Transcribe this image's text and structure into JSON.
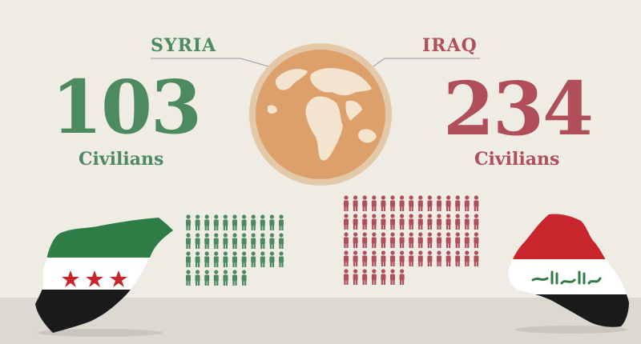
{
  "syria": {
    "name": "SYRIA",
    "count": "103",
    "unit": "Civilians",
    "color": "#4d8a5f",
    "icon_rows": [
      11,
      11,
      11,
      7
    ]
  },
  "iraq": {
    "name": "IRAQ",
    "count": "234",
    "unit": "Civilians",
    "color": "#b04e5a",
    "icon_rows": [
      15,
      15,
      15,
      15,
      7
    ]
  },
  "globe": {
    "icon": "globe-icon",
    "color": "#dea06b"
  },
  "maps": {
    "syria_flag": {
      "icon": "syria-flag-map-icon",
      "colors": [
        "#2f7d46",
        "#ffffff",
        "#1b1b1b",
        "#c8252c"
      ]
    },
    "iraq_flag": {
      "icon": "iraq-flag-map-icon",
      "colors": [
        "#c8252c",
        "#ffffff",
        "#1b1b1b",
        "#2f7d46"
      ]
    }
  }
}
